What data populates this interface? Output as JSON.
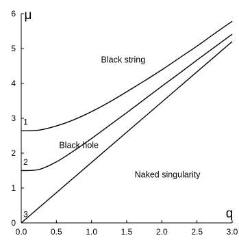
{
  "chart_data": {
    "type": "line",
    "xlabel": "q",
    "ylabel": "μ",
    "xlim": [
      0,
      3
    ],
    "ylim": [
      0,
      6
    ],
    "x_ticks": [
      0.0,
      0.5,
      1.0,
      1.5,
      2.0,
      2.5,
      3.0
    ],
    "x_tick_labels": [
      "0.0",
      "0.5",
      "1.0",
      "1.5",
      "2.0",
      "2.5",
      "3.0"
    ],
    "y_ticks": [
      0,
      1,
      2,
      3,
      4,
      5,
      6
    ],
    "y_tick_labels": [
      "0",
      "1",
      "2",
      "3",
      "4",
      "5",
      "6"
    ],
    "grid": false,
    "series": [
      {
        "name": "1",
        "x": [
          0,
          0.25,
          0.5,
          0.75,
          1.0,
          1.25,
          1.5,
          1.75,
          2.0,
          2.25,
          2.5,
          2.75,
          3.0
        ],
        "values": [
          2.64,
          2.66,
          2.78,
          2.96,
          3.19,
          3.46,
          3.76,
          4.07,
          4.39,
          4.73,
          5.07,
          5.43,
          5.78
        ]
      },
      {
        "name": "2",
        "x": [
          0,
          0.25,
          0.5,
          0.75,
          1.0,
          1.25,
          1.5,
          1.75,
          2.0,
          2.25,
          2.5,
          2.75,
          3.0
        ],
        "values": [
          1.5,
          1.53,
          1.75,
          2.07,
          2.42,
          2.79,
          3.16,
          3.54,
          3.92,
          4.29,
          4.67,
          5.04,
          5.41
        ]
      },
      {
        "name": "3",
        "x": [
          0,
          3.0
        ],
        "values": [
          0,
          5.2
        ]
      }
    ],
    "annotations": [
      {
        "text": "Black string",
        "x": 1.45,
        "y": 4.6
      },
      {
        "text": "Black hole",
        "x": 0.82,
        "y": 2.15
      },
      {
        "text": "Naked singularity",
        "x": 2.08,
        "y": 1.3
      }
    ]
  }
}
